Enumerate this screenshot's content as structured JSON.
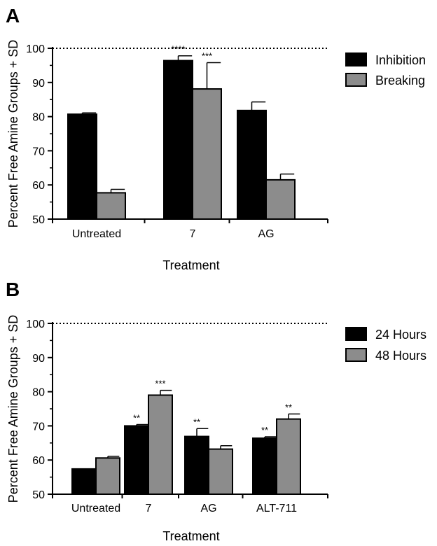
{
  "chart_data": [
    {
      "panel_label": "A",
      "type": "bar",
      "title": "",
      "xlabel": "Treatment",
      "ylabel": "Percent Free Amine Groups + SD",
      "categories": [
        "Untreated",
        "7",
        "AG"
      ],
      "ylim": [
        50,
        100
      ],
      "yticks": [
        "50",
        "60",
        "70",
        "80",
        "90",
        "100"
      ],
      "reference_line": 100,
      "legend_position": "top-right",
      "series": [
        {
          "name": "Inhibition",
          "color": "#000000",
          "values": [
            80.7,
            96.4,
            81.8
          ],
          "sd": [
            0.4,
            1.4,
            2.5
          ],
          "annotations": [
            "",
            "****",
            ""
          ]
        },
        {
          "name": "Breaking",
          "color": "#8c8c8c",
          "values": [
            57.7,
            88.1,
            61.5
          ],
          "sd": [
            1.0,
            7.7,
            1.7
          ],
          "annotations": [
            "",
            "***",
            ""
          ]
        }
      ]
    },
    {
      "panel_label": "B",
      "type": "bar",
      "title": "",
      "xlabel": "Treatment",
      "ylabel": "Percent Free Amine Groups + SD",
      "categories": [
        "Untreated",
        "7",
        "AG",
        "ALT-711"
      ],
      "ylim": [
        50,
        100
      ],
      "yticks": [
        "50",
        "60",
        "70",
        "80",
        "90",
        "100"
      ],
      "reference_line": 100,
      "legend_position": "top-right",
      "series": [
        {
          "name": "24 Hours",
          "color": "#000000",
          "values": [
            57.4,
            70.0,
            66.9,
            66.4
          ],
          "sd": [
            0.0,
            0.4,
            2.3,
            0.4
          ],
          "annotations": [
            "",
            "**",
            "**",
            "**"
          ]
        },
        {
          "name": "48 Hours",
          "color": "#8c8c8c",
          "values": [
            60.6,
            79.0,
            63.2,
            72.0
          ],
          "sd": [
            0.5,
            1.4,
            1.0,
            1.5
          ],
          "annotations": [
            "",
            "***",
            "",
            "**"
          ]
        }
      ]
    }
  ]
}
